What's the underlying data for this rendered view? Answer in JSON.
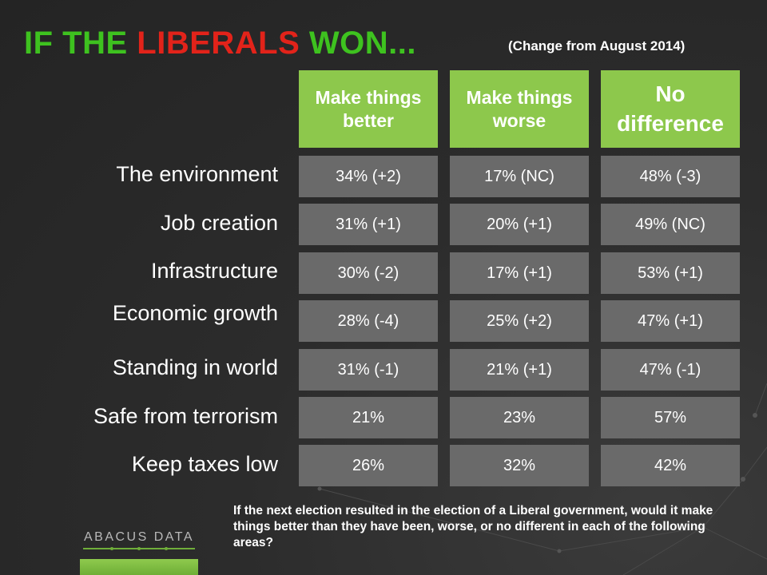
{
  "title": {
    "part1": "IF THE ",
    "part2": "LIBERALS",
    "part3": " WON..."
  },
  "subtitle": "(Change from August 2014)",
  "columns": [
    {
      "line1": "Make things",
      "line2": "better"
    },
    {
      "line1": "Make things",
      "line2": "worse"
    },
    {
      "line1": "No",
      "line2": "difference"
    }
  ],
  "rows": [
    {
      "label": "The environment",
      "better": "34% (+2)",
      "worse": "17% (NC)",
      "no_diff": "48% (-3)"
    },
    {
      "label": "Job creation",
      "better": "31% (+1)",
      "worse": "20% (+1)",
      "no_diff": "49% (NC)"
    },
    {
      "label": "Infrastructure",
      "better": "30% (-2)",
      "worse": "17% (+1)",
      "no_diff": "53% (+1)"
    },
    {
      "label": "Economic growth",
      "better": "28% (-4)",
      "worse": "25% (+2)",
      "no_diff": "47% (+1)"
    },
    {
      "label": "Standing in world",
      "better": "31% (-1)",
      "worse": "21% (+1)",
      "no_diff": "47% (-1)"
    },
    {
      "label": "Safe from terrorism",
      "better": "21%",
      "worse": "23%",
      "no_diff": "57%"
    },
    {
      "label": "Keep taxes low",
      "better": "26%",
      "worse": "32%",
      "no_diff": "42%"
    }
  ],
  "question": "If the next election resulted in the election of a Liberal government, would it make things better than they have been, worse, or no different in each of the following areas?",
  "logo": {
    "text": "ABACUS DATA"
  },
  "colors": {
    "title_green": "#3ec21f",
    "title_red": "#e2231a",
    "header_green": "#8dc84c",
    "cell_gray": "#6a6a6a",
    "background": "#2c2c2c"
  }
}
